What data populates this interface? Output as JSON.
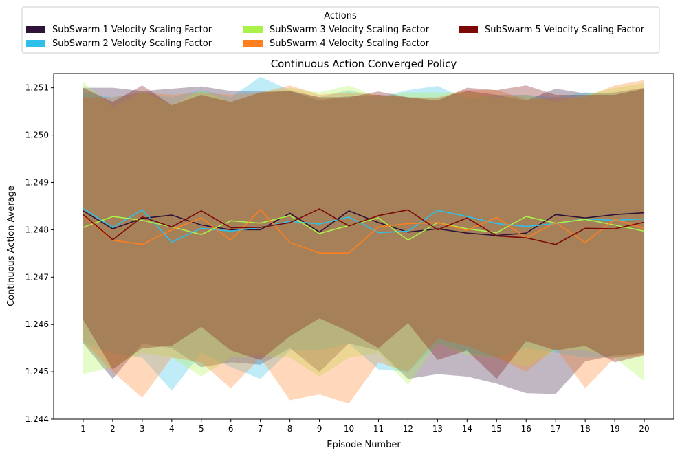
{
  "chart_data": {
    "type": "line",
    "title": "Continuous Action Converged Policy",
    "xlabel": "Episode Number",
    "ylabel": "Continuous Action Average",
    "xlim": [
      0.0,
      21.0
    ],
    "ylim": [
      1.244,
      1.2513
    ],
    "x_ticks": [
      1,
      2,
      3,
      4,
      5,
      6,
      7,
      8,
      9,
      10,
      11,
      12,
      13,
      14,
      15,
      16,
      17,
      18,
      19,
      20
    ],
    "y_ticks": [
      1.244,
      1.245,
      1.246,
      1.247,
      1.248,
      1.249,
      1.25,
      1.251
    ],
    "y_tick_labels": [
      "1.244",
      "1.245",
      "1.246",
      "1.247",
      "1.248",
      "1.249",
      "1.250",
      "1.251"
    ],
    "legend": {
      "title": "Actions",
      "placement": "top",
      "columns": 3
    },
    "grid": false,
    "x": [
      1,
      2,
      3,
      4,
      5,
      6,
      7,
      8,
      9,
      10,
      11,
      12,
      13,
      14,
      15,
      16,
      17,
      18,
      19,
      20
    ],
    "series": [
      {
        "name": "SubSwarm 1 Velocity Scaling Factor",
        "color": "#2e1238",
        "mean": [
          1.2484,
          1.24802,
          1.24824,
          1.24831,
          1.2481,
          1.248,
          1.248,
          1.24835,
          1.24795,
          1.2484,
          1.24815,
          1.24795,
          1.24802,
          1.24793,
          1.24788,
          1.24793,
          1.24832,
          1.24825,
          1.24832,
          1.24836
        ],
        "upper": [
          1.251,
          1.251,
          1.25093,
          1.25098,
          1.25103,
          1.25093,
          1.25093,
          1.25093,
          1.25073,
          1.25083,
          1.25085,
          1.2508,
          1.25078,
          1.25093,
          1.25085,
          1.25073,
          1.25098,
          1.25088,
          1.2509,
          1.251
        ],
        "lower": [
          1.2456,
          1.24485,
          1.2456,
          1.2455,
          1.2451,
          1.2452,
          1.24515,
          1.2455,
          1.245,
          1.2456,
          1.24545,
          1.24485,
          1.24495,
          1.2449,
          1.24475,
          1.24455,
          1.24453,
          1.24522,
          1.24535,
          1.2454
        ]
      },
      {
        "name": "SubSwarm 2 Velocity Scaling Factor",
        "color": "#2ec0e8",
        "mean": [
          1.24845,
          1.24805,
          1.24842,
          1.24774,
          1.24803,
          1.24797,
          1.24805,
          1.24818,
          1.24812,
          1.24827,
          1.24794,
          1.24797,
          1.24841,
          1.24828,
          1.24813,
          1.24807,
          1.24813,
          1.24823,
          1.2482,
          1.24823
        ],
        "upper": [
          1.2509,
          1.2508,
          1.2509,
          1.2508,
          1.25095,
          1.2508,
          1.25123,
          1.25095,
          1.2508,
          1.25095,
          1.2508,
          1.25095,
          1.25104,
          1.25075,
          1.25085,
          1.25085,
          1.2508,
          1.2509,
          1.25088,
          1.25096
        ],
        "lower": [
          1.2456,
          1.2454,
          1.2453,
          1.2446,
          1.2454,
          1.2451,
          1.24485,
          1.24545,
          1.24545,
          1.2456,
          1.24505,
          1.245,
          1.2456,
          1.2454,
          1.2453,
          1.2455,
          1.2454,
          1.2453,
          1.2453,
          1.2454
        ]
      },
      {
        "name": "SubSwarm 3 Velocity Scaling Factor",
        "color": "#a8f24a",
        "mean": [
          1.24805,
          1.24828,
          1.2482,
          1.24806,
          1.2479,
          1.24819,
          1.24814,
          1.2483,
          1.24792,
          1.24809,
          1.24825,
          1.24778,
          1.24815,
          1.24802,
          1.24794,
          1.24828,
          1.24814,
          1.24822,
          1.2481,
          1.24797
        ],
        "upper": [
          1.25112,
          1.2506,
          1.25093,
          1.25063,
          1.25095,
          1.2507,
          1.2509,
          1.251,
          1.2509,
          1.25105,
          1.2508,
          1.2509,
          1.2509,
          1.2509,
          1.2508,
          1.25085,
          1.2507,
          1.25085,
          1.251,
          1.2511
        ],
        "lower": [
          1.24495,
          1.2451,
          1.2454,
          1.2453,
          1.2449,
          1.2453,
          1.24535,
          1.2453,
          1.2449,
          1.2453,
          1.2454,
          1.24472,
          1.2456,
          1.24535,
          1.2453,
          1.2451,
          1.24545,
          1.24545,
          1.2453,
          1.2448
        ]
      },
      {
        "name": "SubSwarm 4 Velocity Scaling Factor",
        "color": "#ff7f1e",
        "mean": [
          1.2483,
          1.24778,
          1.24769,
          1.248,
          1.24825,
          1.24778,
          1.24843,
          1.24773,
          1.24751,
          1.24751,
          1.24806,
          1.24813,
          1.24815,
          1.24799,
          1.24826,
          1.24783,
          1.24815,
          1.24773,
          1.24822,
          1.24803
        ],
        "upper": [
          1.2508,
          1.2508,
          1.2509,
          1.25085,
          1.2509,
          1.25085,
          1.2509,
          1.25105,
          1.25085,
          1.2509,
          1.25085,
          1.2508,
          1.2508,
          1.25095,
          1.25095,
          1.25075,
          1.2508,
          1.2508,
          1.25105,
          1.25116
        ],
        "lower": [
          1.24565,
          1.245,
          1.24445,
          1.2453,
          1.2452,
          1.24465,
          1.2453,
          1.2444,
          1.24452,
          1.24433,
          1.2452,
          1.245,
          1.2457,
          1.24555,
          1.2453,
          1.245,
          1.2455,
          1.24465,
          1.2453,
          1.24535
        ]
      },
      {
        "name": "SubSwarm 5 Velocity Scaling Factor",
        "color": "#7b0a06",
        "mean": [
          1.24832,
          1.24779,
          1.24827,
          1.24806,
          1.2484,
          1.24804,
          1.24805,
          1.24815,
          1.24844,
          1.24808,
          1.2483,
          1.24842,
          1.248,
          1.24825,
          1.24787,
          1.24783,
          1.24769,
          1.24803,
          1.24802,
          1.24816
        ],
        "upper": [
          1.251,
          1.2507,
          1.25105,
          1.25063,
          1.25085,
          1.2507,
          1.2509,
          1.25093,
          1.2508,
          1.2508,
          1.25092,
          1.2508,
          1.25073,
          1.251,
          1.25095,
          1.25105,
          1.25085,
          1.25085,
          1.25085,
          1.25098
        ],
        "lower": [
          1.2461,
          1.24505,
          1.2455,
          1.24555,
          1.24595,
          1.24545,
          1.24525,
          1.24575,
          1.24613,
          1.24585,
          1.2455,
          1.24603,
          1.24525,
          1.24545,
          1.24485,
          1.24565,
          1.24545,
          1.24555,
          1.2452,
          1.24535
        ]
      }
    ]
  }
}
